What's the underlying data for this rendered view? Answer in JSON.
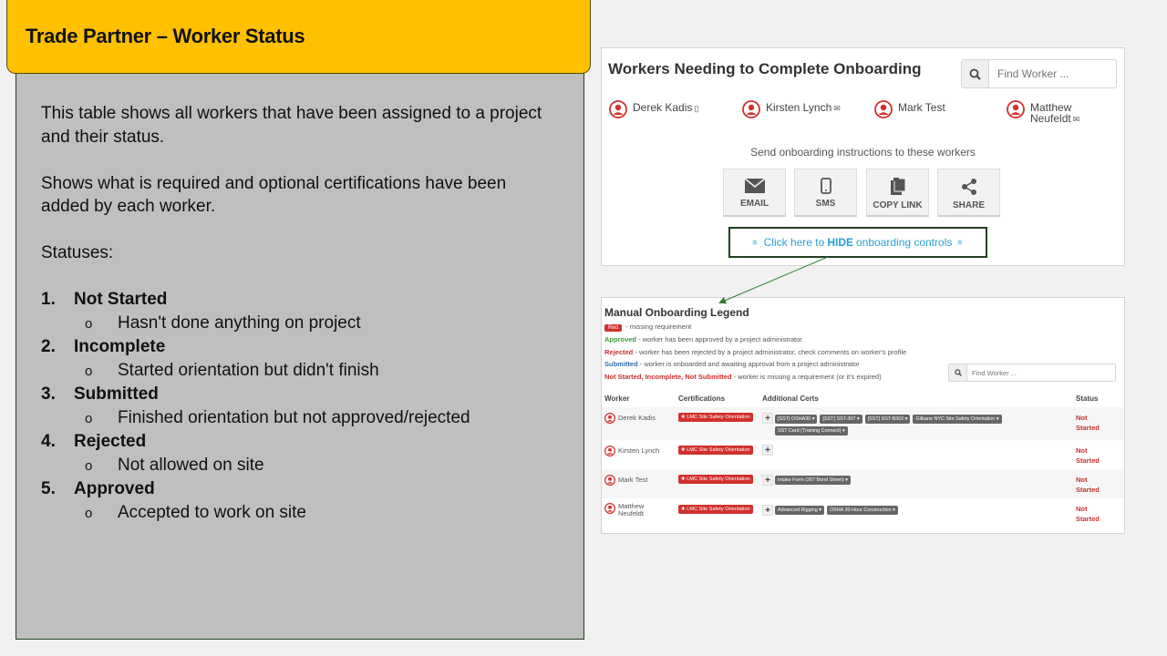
{
  "slide": {
    "title": "Trade Partner – Worker Status",
    "paragraph1": "This table shows all workers that have been assigned to a project and their status.",
    "paragraph2": "Shows what is required and optional certifications have been added by each worker.",
    "statuses_heading": "Statuses:",
    "statuses": [
      {
        "num": "1.",
        "label": "Not Started",
        "desc": "Hasn't done anything on project"
      },
      {
        "num": "2.",
        "label": "Incomplete",
        "desc": "Started orientation but didn't finish"
      },
      {
        "num": "3.",
        "label": "Submitted",
        "desc": "Finished orientation but not approved/rejected"
      },
      {
        "num": "4.",
        "label": "Rejected",
        "desc": "Not allowed on site"
      },
      {
        "num": "5.",
        "label": "Approved",
        "desc": "Accepted to work on site"
      }
    ],
    "sub_bullet": "o"
  },
  "onboarding": {
    "title": "Workers Needing to Complete Onboarding",
    "find_placeholder": "Find Worker ...",
    "workers": [
      {
        "name": "Derek Kadis",
        "icon": "mobile-icon",
        "glyph": "▯"
      },
      {
        "name": "Kirsten Lynch",
        "icon": "email-icon",
        "glyph": "✉"
      },
      {
        "name": "Mark Test",
        "icon": "",
        "glyph": ""
      },
      {
        "name": "Matthew Neufeldt",
        "line1": "Matthew",
        "line2": "Neufeldt",
        "icon": "email-icon",
        "glyph": "✉"
      }
    ],
    "send_label": "Send onboarding instructions to these workers",
    "buttons": {
      "email": "EMAIL",
      "sms": "SMS",
      "copy_link": "COPY LINK",
      "share": "SHARE"
    },
    "hide_link": {
      "prefix": "Click here to",
      "bold": "HIDE",
      "suffix": "onboarding controls",
      "arrow": "»"
    }
  },
  "legend": {
    "title": "Manual Onboarding Legend",
    "red_pill": "Red",
    "red_desc": "- missing requirement",
    "approved_label": "Approved",
    "approved_desc": "- worker has been approved by a project administrator",
    "rejected_label": "Rejected",
    "rejected_desc": "- worker has been rejected by a project administrator, check comments on worker's profile",
    "submitted_label": "Submitted",
    "submitted_desc": "- worker is onboarded and awaiting approval from a project administrator",
    "missing_label": "Not Started, Incomplete, Not Submitted",
    "missing_desc": "- worker is missing a requirement (or it's expired)",
    "find_placeholder": "Find Worker ..."
  },
  "table": {
    "headers": {
      "worker": "Worker",
      "certifications": "Certifications",
      "additional": "Additional Certs",
      "status": "Status"
    },
    "rows": [
      {
        "name": "Derek Kadis",
        "cert": "✚ LMC Site Safety Orientation",
        "plus": "+",
        "tags": [
          "[SST] OSHA30 ▾",
          "[SST] SST-307 ▾",
          "[SST] SST-B302 ▾",
          "Gilbane NYC Site Safety Orientation ▾",
          "SST Card (Training Connect) ▾"
        ],
        "status1": "Not",
        "status2": "Started"
      },
      {
        "name": "Kirsten Lynch",
        "cert": "✚ LMC Site Safety Orientation",
        "plus": "+",
        "tags": [],
        "status1": "Not",
        "status2": "Started"
      },
      {
        "name": "Mark Test",
        "cert": "✚ LMC Site Safety Orientation",
        "plus": "+",
        "tags": [
          "Intake Form (267 Bond Street) ▾"
        ],
        "status1": "Not",
        "status2": "Started"
      },
      {
        "name": "Matthew Neufeldt",
        "line1": "Matthew",
        "line2": "Neufeldt",
        "cert": "✚ LMC Site Safety Orientation",
        "plus": "+",
        "tags": [
          "Advanced Rigging ▾",
          "OSHA 30-Hour Construction ▾"
        ],
        "status1": "Not",
        "status2": "Started"
      }
    ]
  },
  "colors": {
    "title_bar": "#ffc000",
    "panel": "#bfbfbf",
    "link": "#2aa1d2",
    "red": "#d0312d",
    "callout": "#2e7d32"
  }
}
